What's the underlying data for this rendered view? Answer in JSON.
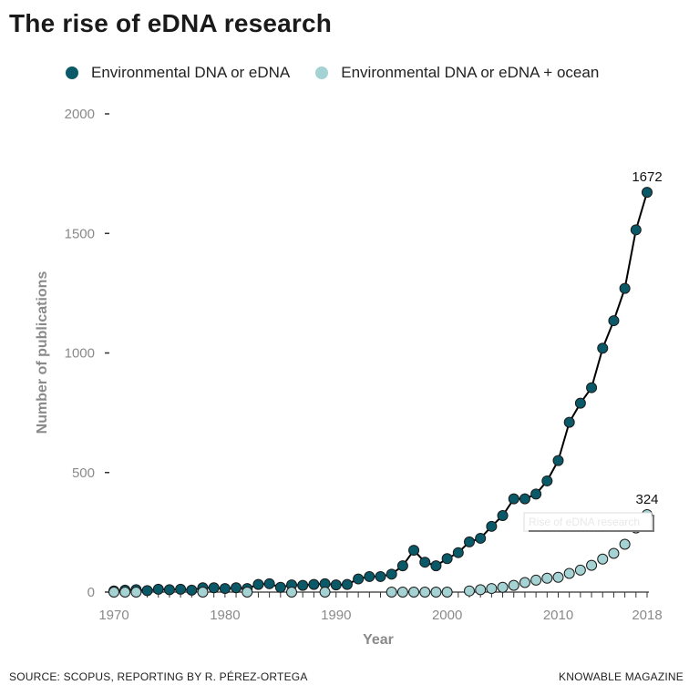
{
  "title": "The rise of eDNA research",
  "source": "SOURCE: SCOPUS, REPORTING BY R. PÉREZ-ORTEGA",
  "credit": "KNOWABLE MAGAZINE",
  "colors": {
    "dark": "#0a5968",
    "light": "#a5d3d3",
    "line": "#000000",
    "axis": "#8a8a8a"
  },
  "chart_data": {
    "type": "line",
    "title": "The rise of eDNA research",
    "xlabel": "Year",
    "ylabel": "Number of publications",
    "xlim": [
      1970,
      2018
    ],
    "ylim": [
      0,
      2000
    ],
    "x_ticks": [
      "1970",
      "1980",
      "1990",
      "2000",
      "2010",
      "2018"
    ],
    "y_ticks": [
      "0",
      "500",
      "1000",
      "1500",
      "2000"
    ],
    "legend": "top",
    "series": [
      {
        "name": "Environmental DNA or eDNA",
        "color": "#0a5968",
        "connected": true,
        "points": [
          [
            1970,
            5
          ],
          [
            1971,
            8
          ],
          [
            1972,
            10
          ],
          [
            1973,
            6
          ],
          [
            1974,
            12
          ],
          [
            1975,
            10
          ],
          [
            1976,
            12
          ],
          [
            1977,
            8
          ],
          [
            1978,
            18
          ],
          [
            1979,
            18
          ],
          [
            1980,
            15
          ],
          [
            1981,
            18
          ],
          [
            1982,
            15
          ],
          [
            1983,
            32
          ],
          [
            1984,
            35
          ],
          [
            1985,
            20
          ],
          [
            1986,
            30
          ],
          [
            1987,
            28
          ],
          [
            1988,
            32
          ],
          [
            1989,
            35
          ],
          [
            1990,
            30
          ],
          [
            1991,
            32
          ],
          [
            1992,
            55
          ],
          [
            1993,
            65
          ],
          [
            1994,
            65
          ],
          [
            1995,
            75
          ],
          [
            1996,
            110
          ],
          [
            1997,
            175
          ],
          [
            1998,
            125
          ],
          [
            1999,
            110
          ],
          [
            2000,
            140
          ],
          [
            2001,
            165
          ],
          [
            2002,
            210
          ],
          [
            2003,
            225
          ],
          [
            2004,
            275
          ],
          [
            2005,
            320
          ],
          [
            2006,
            390
          ],
          [
            2007,
            390
          ],
          [
            2008,
            410
          ],
          [
            2009,
            465
          ],
          [
            2010,
            550
          ],
          [
            2011,
            710
          ],
          [
            2012,
            790
          ],
          [
            2013,
            855
          ],
          [
            2014,
            1020
          ],
          [
            2015,
            1135
          ],
          [
            2016,
            1270
          ],
          [
            2017,
            1515
          ],
          [
            2018,
            1672
          ]
        ],
        "end_label": "1672"
      },
      {
        "name": "Environmental DNA or eDNA + ocean",
        "color": "#a5d3d3",
        "connected": false,
        "points": [
          [
            1970,
            0
          ],
          [
            1971,
            0
          ],
          [
            1972,
            0
          ],
          [
            1978,
            0
          ],
          [
            1982,
            0
          ],
          [
            1986,
            0
          ],
          [
            1989,
            0
          ],
          [
            1995,
            0
          ],
          [
            1996,
            0
          ],
          [
            1997,
            0
          ],
          [
            1998,
            0
          ],
          [
            1999,
            0
          ],
          [
            2000,
            0
          ],
          [
            2002,
            5
          ],
          [
            2003,
            10
          ],
          [
            2004,
            15
          ],
          [
            2005,
            20
          ],
          [
            2006,
            28
          ],
          [
            2007,
            40
          ],
          [
            2008,
            50
          ],
          [
            2009,
            58
          ],
          [
            2010,
            62
          ],
          [
            2011,
            78
          ],
          [
            2012,
            92
          ],
          [
            2013,
            112
          ],
          [
            2014,
            138
          ],
          [
            2015,
            162
          ],
          [
            2016,
            200
          ],
          [
            2017,
            268
          ],
          [
            2018,
            324
          ]
        ],
        "end_label": "324"
      }
    ],
    "annotation": "Rise of eDNA research"
  }
}
